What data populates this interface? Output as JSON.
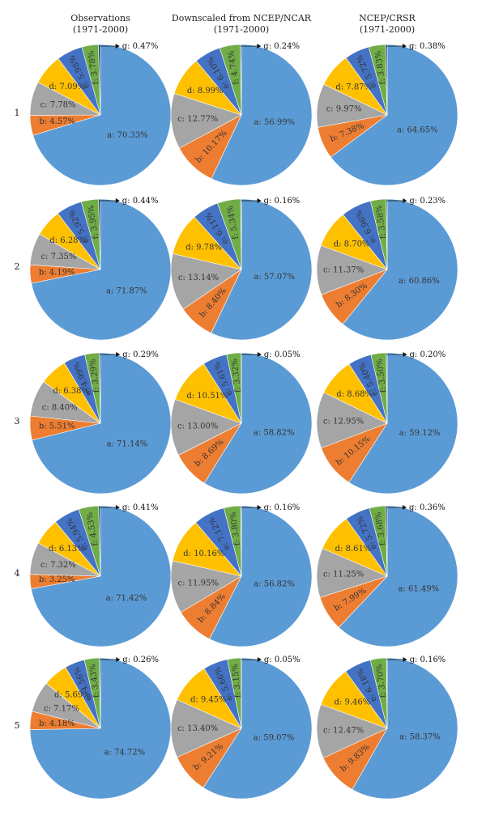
{
  "columns": [
    {
      "title": "Observations",
      "period": "(1971-2000)"
    },
    {
      "title": "Downscaled from NCEP/NCAR",
      "period": "(1971-2000)"
    },
    {
      "title": "NCEP/CRSR",
      "period": "(1971-2000)"
    }
  ],
  "rows": [
    "1",
    "2",
    "3",
    "4",
    "5"
  ],
  "colors": {
    "a": "#5b9bd5",
    "b": "#ed7d31",
    "c": "#a5a5a5",
    "d": "#ffc000",
    "e": "#4472c4",
    "f": "#70ad47",
    "g": "#264478"
  },
  "chart_data": {
    "type": "pie",
    "slice_keys": [
      "a",
      "b",
      "c",
      "d",
      "e",
      "f",
      "g"
    ],
    "label_format": "{key}: {value}%",
    "panels": [
      {
        "row": "1",
        "column": "Observations",
        "values": [
          70.33,
          4.57,
          7.78,
          7.09,
          5.98,
          3.78,
          0.47
        ],
        "labels": [
          "a: 70.33%",
          "b: 4.57%",
          "c: 7.78%",
          "d: 7.09%",
          "e: 5.98%",
          "f: 3.78%",
          "g: 0.47%"
        ]
      },
      {
        "row": "1",
        "column": "Downscaled from NCEP/NCAR",
        "values": [
          56.99,
          10.17,
          12.77,
          8.99,
          6.1,
          4.74,
          0.24
        ],
        "labels": [
          "a: 56.99%",
          "b: 10.17%",
          "c: 12.77%",
          "d: 8.99%",
          "e: 6.10%",
          "f: 4.74%",
          "g: 0.24%"
        ]
      },
      {
        "row": "1",
        "column": "NCEP/CRSR",
        "values": [
          64.65,
          7.38,
          9.97,
          7.87,
          5.72,
          3.83,
          0.38
        ],
        "labels": [
          "a: 64.65%",
          "b: 7.38%",
          "c: 9.97%",
          "d: 7.87%",
          "e: 5.72%",
          "f: 3.83%",
          "g: 0.38%"
        ]
      },
      {
        "row": "2",
        "column": "Observations",
        "values": [
          71.87,
          4.19,
          7.35,
          6.28,
          5.92,
          3.95,
          0.44
        ],
        "labels": [
          "a: 71.87%",
          "b: 4.19%",
          "c: 7.35%",
          "d: 6.28%",
          "e: 5.92%",
          "f: 3.95%",
          "g: 0.44%"
        ]
      },
      {
        "row": "2",
        "column": "Downscaled from NCEP/NCAR",
        "values": [
          57.07,
          8.4,
          13.14,
          9.78,
          6.11,
          5.34,
          0.16
        ],
        "labels": [
          "a: 57.07%",
          "b: 8.40%",
          "c: 13.14%",
          "d: 9.78%",
          "e: 6.11%",
          "f: 5.34%",
          "g: 0.16%"
        ]
      },
      {
        "row": "2",
        "column": "NCEP/CRSR",
        "values": [
          60.86,
          8.3,
          11.37,
          8.7,
          6.96,
          3.58,
          0.23
        ],
        "labels": [
          "a: 60.86%",
          "b: 8.30%",
          "c: 11.37%",
          "d: 8.70%",
          "e: 6.96%",
          "f: 3.58%",
          "g: 0.23%"
        ]
      },
      {
        "row": "3",
        "column": "Observations",
        "values": [
          71.14,
          5.51,
          8.4,
          6.38,
          4.99,
          3.29,
          0.29
        ],
        "labels": [
          "a: 71.14%",
          "b: 5.51%",
          "c: 8.40%",
          "d: 6.38%",
          "e: 4.99%",
          "f: 3.29%",
          "g: 0.29%"
        ]
      },
      {
        "row": "3",
        "column": "Downscaled from NCEP/NCAR",
        "values": [
          58.82,
          8.69,
          13.0,
          10.51,
          5.61,
          3.32,
          0.05
        ],
        "labels": [
          "a: 58.82%",
          "b: 8.69%",
          "c: 13.00%",
          "d: 10.51%",
          "e: 5.61%",
          "f: 3.32%",
          "g: 0.05%"
        ]
      },
      {
        "row": "3",
        "column": "NCEP/CRSR",
        "values": [
          59.12,
          10.15,
          12.95,
          8.68,
          5.4,
          3.5,
          0.2
        ],
        "labels": [
          "a: 59.12%",
          "b: 10.15%",
          "c: 12.95%",
          "d: 8.68%",
          "e: 5.40%",
          "f: 3.50%",
          "g: 0.20%"
        ]
      },
      {
        "row": "4",
        "column": "Observations",
        "values": [
          71.42,
          3.25,
          7.32,
          6.13,
          5.94,
          4.53,
          0.41
        ],
        "labels": [
          "a: 71.42%",
          "b: 3.25%",
          "c: 7.32%",
          "d: 6.13%",
          "e: 5.94%",
          "f: 4.53%",
          "g: 0.41%"
        ]
      },
      {
        "row": "4",
        "column": "Downscaled from NCEP/NCAR",
        "values": [
          56.82,
          8.84,
          11.95,
          10.16,
          7.12,
          3.8,
          0.16
        ],
        "labels": [
          "a: 56.82%",
          "b: 8.84%",
          "c: 11.95%",
          "d: 10.16%",
          "e: 7.12%",
          "f: 3.80%",
          "g: 0.16%"
        ]
      },
      {
        "row": "4",
        "column": "NCEP/CRSR",
        "values": [
          61.49,
          7.99,
          11.25,
          8.61,
          5.72,
          3.68,
          0.36
        ],
        "labels": [
          "a: 61.49%",
          "b: 7.99%",
          "c: 11.25%",
          "d: 8.61%",
          "e: 5.72%",
          "f: 3.68%",
          "g: 0.36%"
        ]
      },
      {
        "row": "5",
        "column": "Observations",
        "values": [
          74.72,
          4.18,
          7.17,
          5.69,
          4.56,
          3.43,
          0.26
        ],
        "labels": [
          "a: 74.72%",
          "b: 4.18%",
          "c: 7.17%",
          "d: 5.69%",
          "e: 4.56%",
          "f: 3.43%",
          "g: 0.26%"
        ]
      },
      {
        "row": "5",
        "column": "Downscaled from NCEP/NCAR",
        "values": [
          59.07,
          9.21,
          13.4,
          9.45,
          5.66,
          3.15,
          0.05
        ],
        "labels": [
          "a: 59.07%",
          "b: 9.21%",
          "c: 13.40%",
          "d: 9.45%",
          "e: 5.66%",
          "f: 3.15%",
          "g: 0.05%"
        ]
      },
      {
        "row": "5",
        "column": "NCEP/CRSR",
        "values": [
          58.37,
          9.83,
          12.47,
          9.46,
          6.18,
          3.7,
          0.16
        ],
        "labels": [
          "a: 58.37%",
          "b: 9.83%",
          "c: 12.47%",
          "d: 9.46%",
          "e: 6.18%",
          "f: 3.70%",
          "g: 0.16%"
        ]
      }
    ]
  }
}
